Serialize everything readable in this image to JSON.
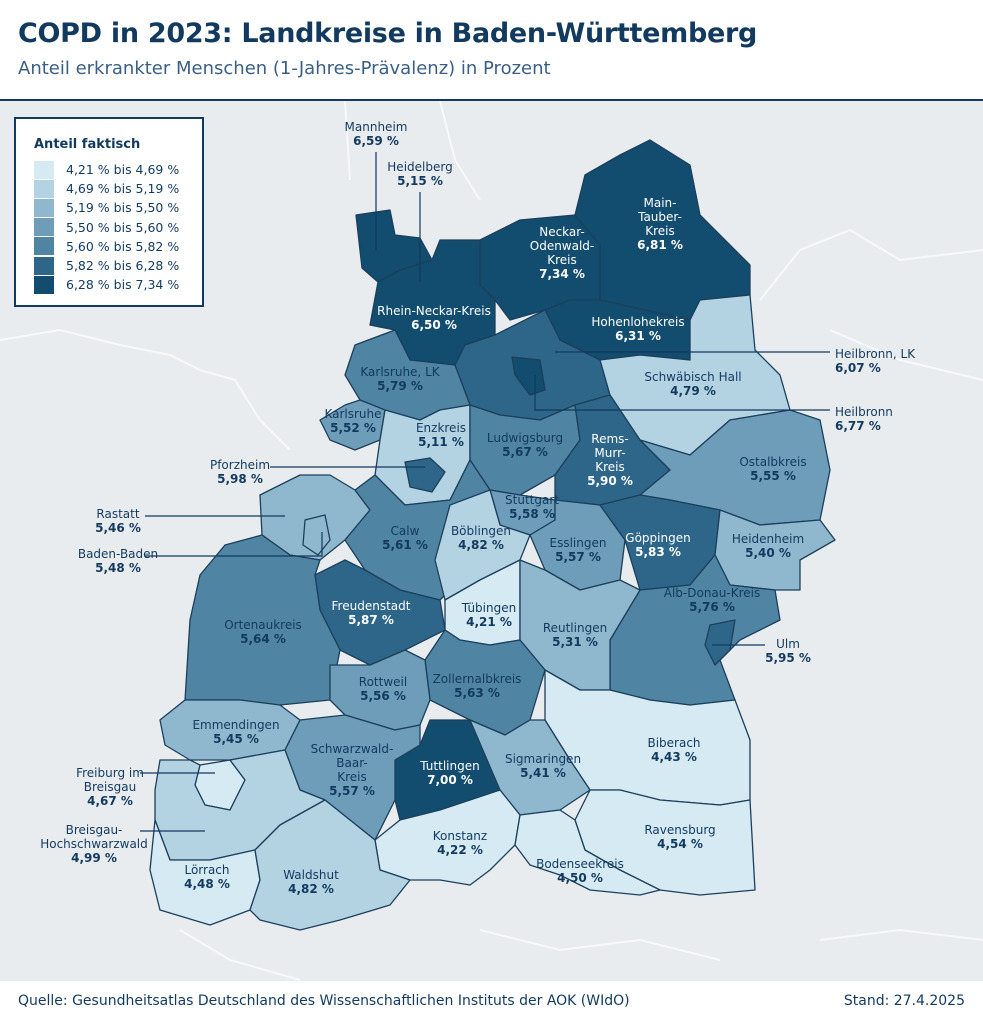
{
  "header": {
    "title": "COPD in 2023: Landkreise in Baden-Württemberg",
    "subtitle": "Anteil erkrankter Menschen (1-Jahres-Prävalenz) in Prozent"
  },
  "legend": {
    "title": "Anteil faktisch",
    "items": [
      {
        "label": "4,21 % bis 4,69 %",
        "color": "#d6eaf4"
      },
      {
        "label": "4,69 % bis 5,19 %",
        "color": "#b3d3e3"
      },
      {
        "label": "5,19 % bis 5,50 %",
        "color": "#8fb8cf"
      },
      {
        "label": "5,50 % bis 5,60 %",
        "color": "#6d9db8"
      },
      {
        "label": "5,60 % bis 5,82 %",
        "color": "#4f84a3"
      },
      {
        "label": "5,82 % bis 6,28 %",
        "color": "#2e668a"
      },
      {
        "label": "6,28 % bis 7,34 %",
        "color": "#124c6e"
      }
    ]
  },
  "districts": [
    {
      "name": "Mannheim",
      "value": "6,59 %"
    },
    {
      "name": "Heidelberg",
      "value": "5,15 %"
    },
    {
      "name": "Neckar-\nOdenwald-\nKreis",
      "value": "7,34 %"
    },
    {
      "name": "Main-\nTauber-\nKreis",
      "value": "6,81 %"
    },
    {
      "name": "Rhein-Neckar-Kreis",
      "value": "6,50 %"
    },
    {
      "name": "Hohenlohekreis",
      "value": "6,31 %"
    },
    {
      "name": "Heilbronn, LK",
      "value": "6,07 %"
    },
    {
      "name": "Schwäbisch Hall",
      "value": "4,79 %"
    },
    {
      "name": "Heilbronn",
      "value": "6,77 %"
    },
    {
      "name": "Karlsruhe, LK",
      "value": "5,79 %"
    },
    {
      "name": "Karlsruhe",
      "value": "5,52 %"
    },
    {
      "name": "Enzkreis",
      "value": "5,11 %"
    },
    {
      "name": "Ludwigsburg",
      "value": "5,67 %"
    },
    {
      "name": "Rems-\nMurr-\nKreis",
      "value": "5,90 %"
    },
    {
      "name": "Ostalbkreis",
      "value": "5,55 %"
    },
    {
      "name": "Pforzheim",
      "value": "5,98 %"
    },
    {
      "name": "Stuttgart",
      "value": "5,58 %"
    },
    {
      "name": "Rastatt",
      "value": "5,46 %"
    },
    {
      "name": "Calw",
      "value": "5,61 %"
    },
    {
      "name": "Böblingen",
      "value": "4,82 %"
    },
    {
      "name": "Esslingen",
      "value": "5,57 %"
    },
    {
      "name": "Göppingen",
      "value": "5,83 %"
    },
    {
      "name": "Heidenheim",
      "value": "5,40 %"
    },
    {
      "name": "Baden-Baden",
      "value": "5,48 %"
    },
    {
      "name": "Alb-Donau-Kreis",
      "value": "5,76 %"
    },
    {
      "name": "Freudenstadt",
      "value": "5,87 %"
    },
    {
      "name": "Tübingen",
      "value": "4,21 %"
    },
    {
      "name": "Reutlingen",
      "value": "5,31 %"
    },
    {
      "name": "Ortenaukreis",
      "value": "5,64 %"
    },
    {
      "name": "Ulm",
      "value": "5,95 %"
    },
    {
      "name": "Zollernalbkreis",
      "value": "5,63 %"
    },
    {
      "name": "Rottweil",
      "value": "5,56 %"
    },
    {
      "name": "Emmendingen",
      "value": "5,45 %"
    },
    {
      "name": "Biberach",
      "value": "4,43 %"
    },
    {
      "name": "Schwarzwald-\nBaar-\nKreis",
      "value": "5,57 %"
    },
    {
      "name": "Tuttlingen",
      "value": "7,00 %"
    },
    {
      "name": "Sigmaringen",
      "value": "5,41 %"
    },
    {
      "name": "Freiburg im\nBreisgau",
      "value": "4,67 %"
    },
    {
      "name": "Breisgau-\nHochschwarzwald",
      "value": "4,99 %"
    },
    {
      "name": "Konstanz",
      "value": "4,22 %"
    },
    {
      "name": "Ravensburg",
      "value": "4,54 %"
    },
    {
      "name": "Bodenseekreis",
      "value": "4,50 %"
    },
    {
      "name": "Lörrach",
      "value": "4,48 %"
    },
    {
      "name": "Waldshut",
      "value": "4,82 %"
    }
  ],
  "footer": {
    "source": "Quelle: Gesundheitsatlas Deutschland des Wissenschaftlichen Instituts der AOK (WIdO)",
    "date": "Stand: 27.4.2025"
  }
}
